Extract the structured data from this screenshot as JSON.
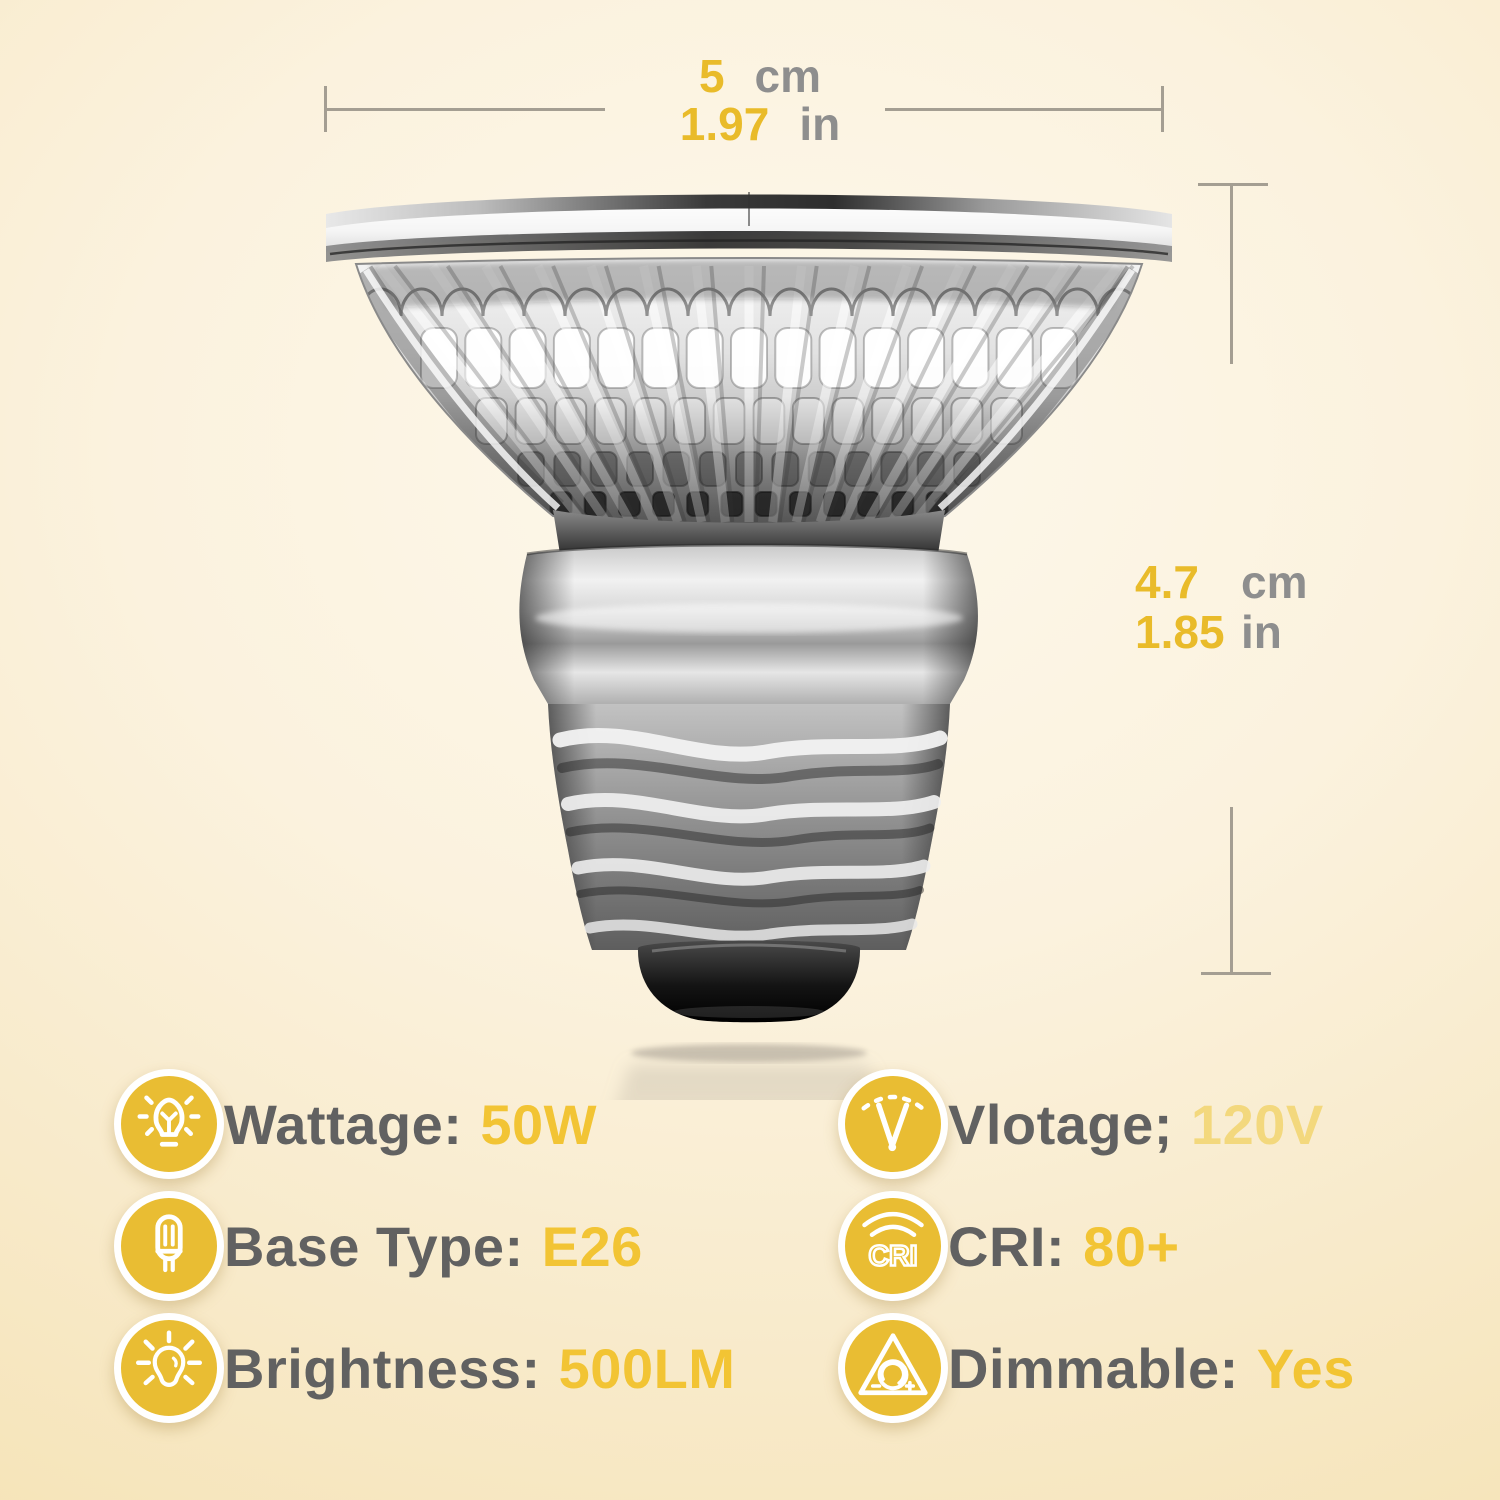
{
  "colors": {
    "accent_yellow": "#f2c434",
    "soft_yellow": "#f3d87d",
    "icon_yellow": "#e9bd33",
    "label_gray": "#616161",
    "unit_gray": "#8e8e8e",
    "measure_line_gray": "#a49e92"
  },
  "dimensions": {
    "width": {
      "cm_value": "5",
      "cm_unit": "cm",
      "in_value": "1.97",
      "in_unit": "in"
    },
    "height": {
      "cm_value": "4.7",
      "cm_unit": "cm",
      "in_value": "1.85",
      "in_unit": "in"
    }
  },
  "specs": {
    "left": [
      {
        "icon": "wattage-bulb-icon",
        "label": "Wattage:",
        "value": "50W"
      },
      {
        "icon": "base-type-icon",
        "label": "Base Type:",
        "value": "E26"
      },
      {
        "icon": "brightness-icon",
        "label": "Brightness:",
        "value": "500LM"
      }
    ],
    "right": [
      {
        "icon": "voltage-meter-icon",
        "label": "Vlotage;",
        "value": "120V"
      },
      {
        "icon": "cri-icon",
        "label": "CRI:",
        "value": "80+",
        "icon_text": "CRI"
      },
      {
        "icon": "dimmable-icon",
        "label": "Dimmable:",
        "value": "Yes"
      }
    ]
  }
}
